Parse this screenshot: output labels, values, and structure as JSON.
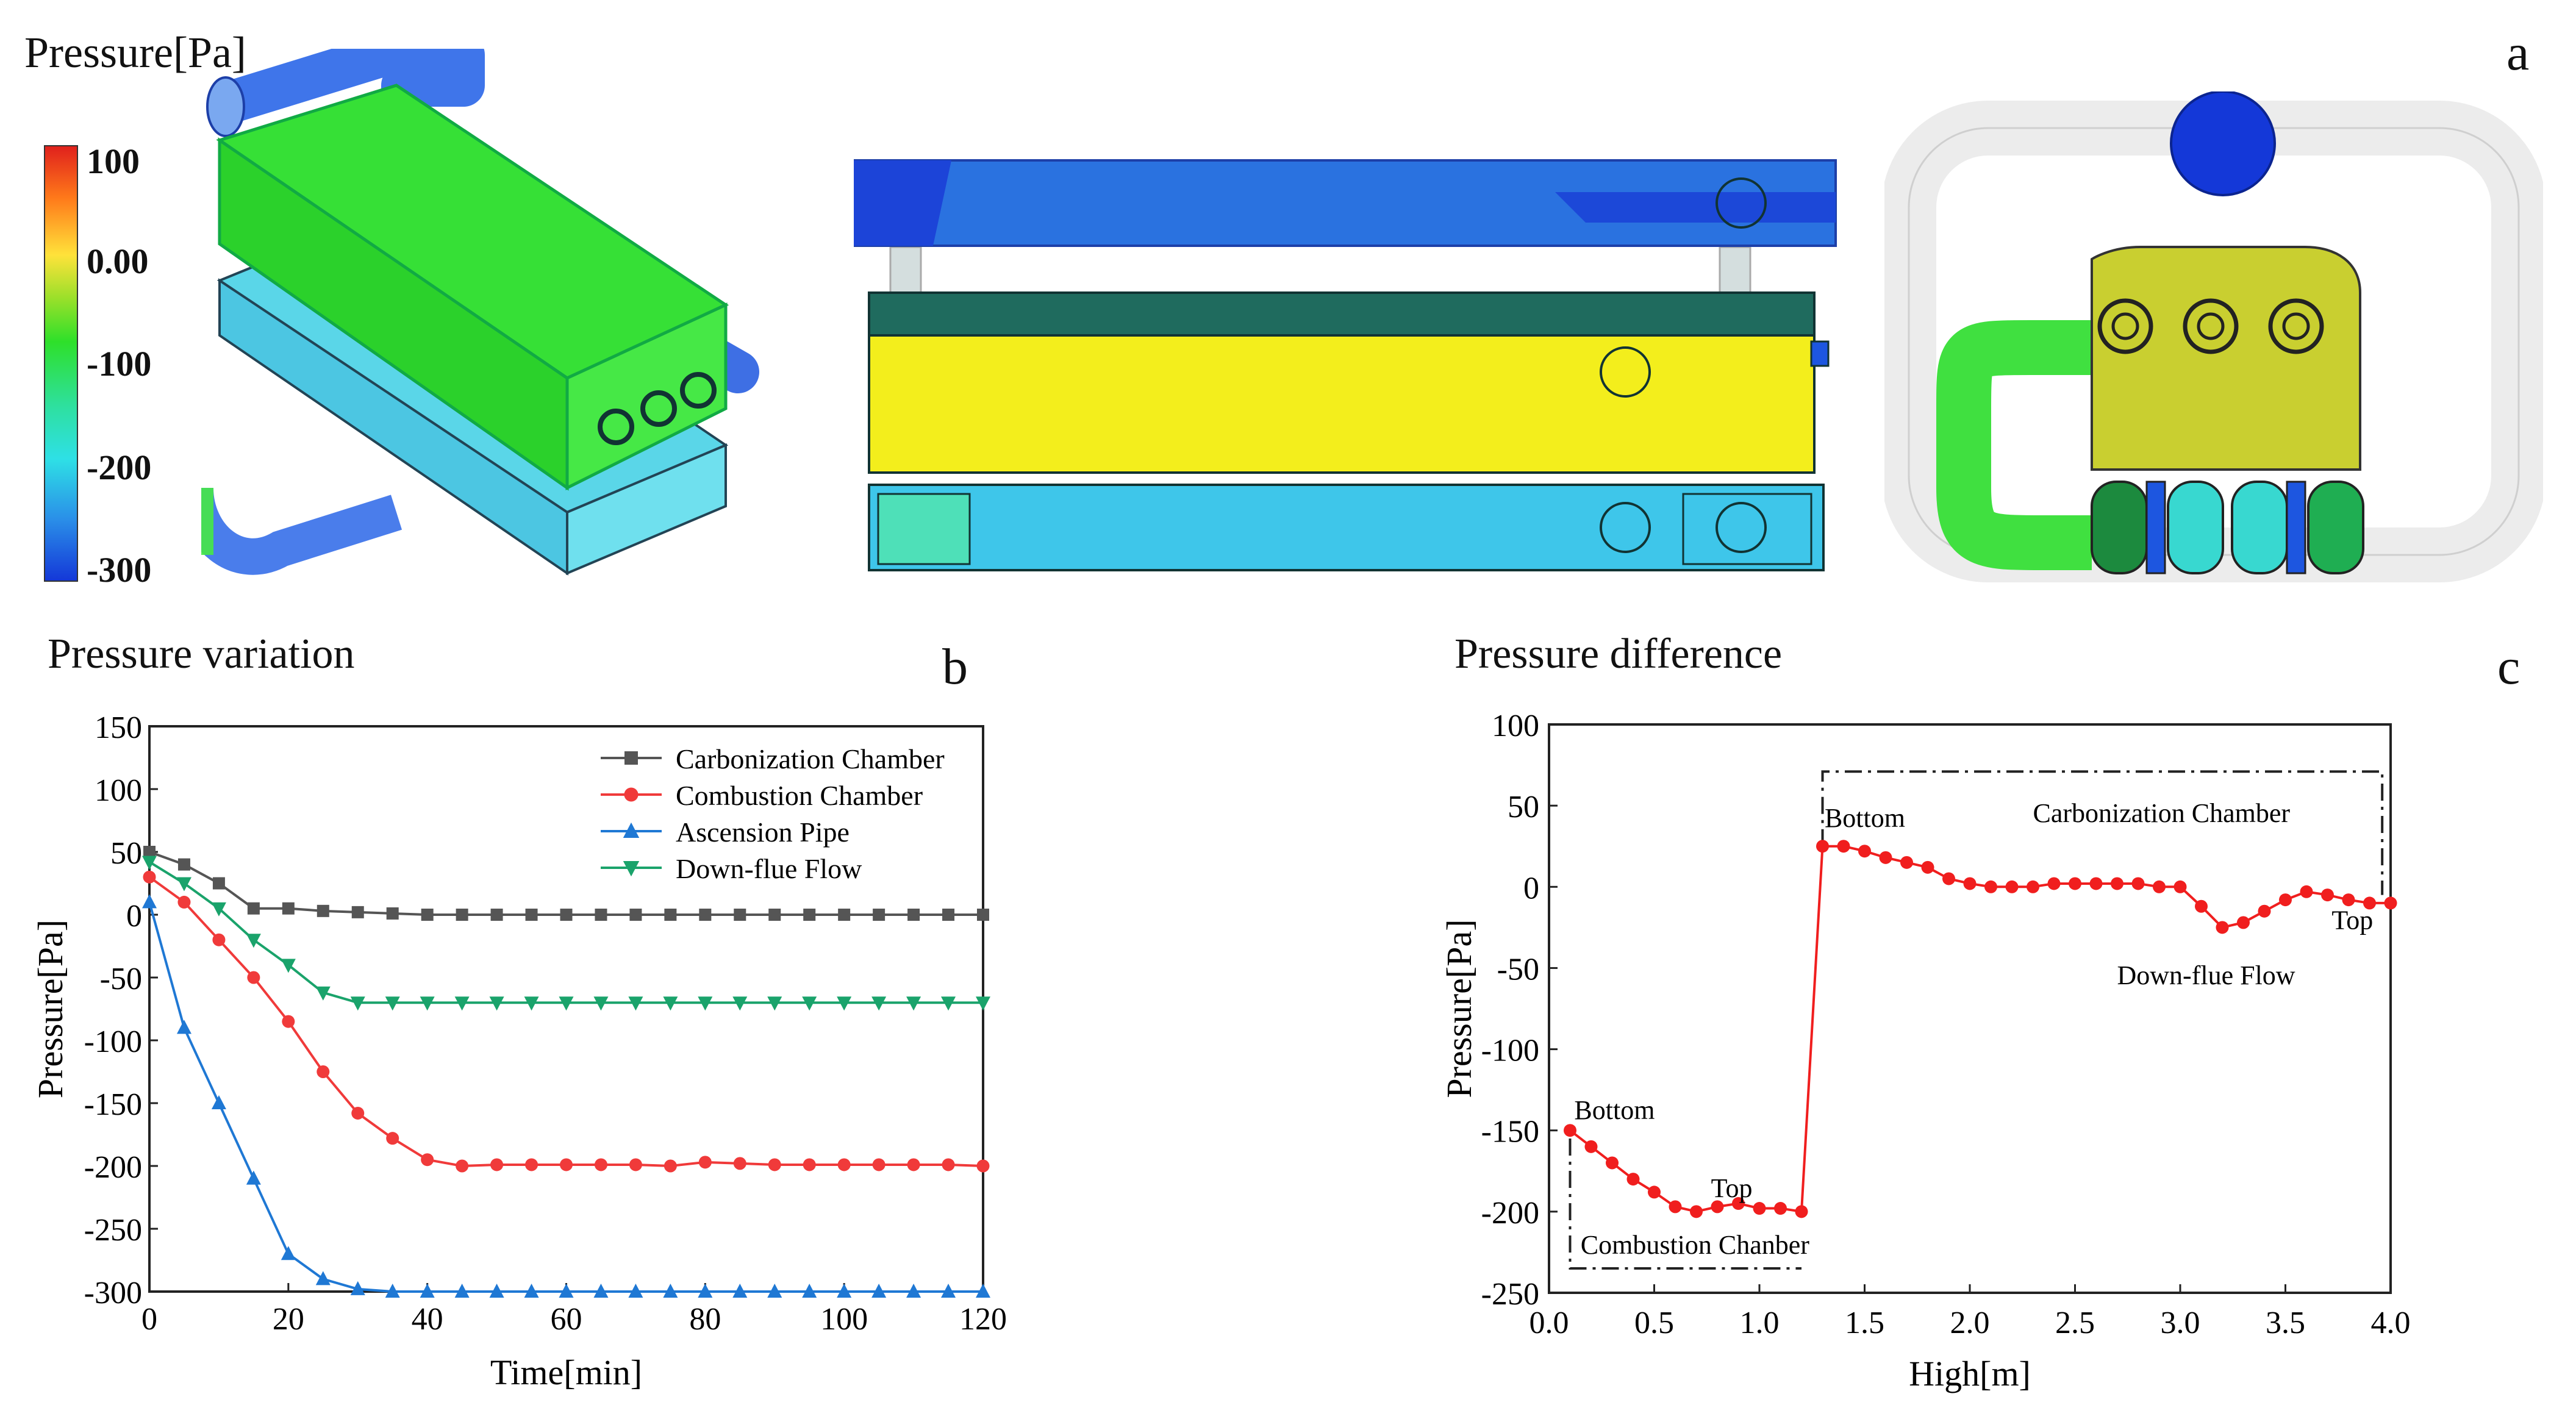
{
  "panel_a": {
    "letter": "a",
    "title": "Pressure[Pa]",
    "colorbar_ticks": [
      "100",
      "0.00",
      "-100",
      "-200",
      "-300"
    ],
    "colors": {
      "high": "#e0211c",
      "mid": "#ffe23a",
      "zero": "#2ee02a",
      "low2": "#2ee0e6",
      "low": "#1438d8"
    }
  },
  "panel_b": {
    "letter": "b",
    "title": "Pressure variation"
  },
  "panel_c": {
    "letter": "c",
    "title": "Pressure difference"
  },
  "chart_data": [
    {
      "type": "line",
      "id": "pressure-variation",
      "title": "Pressure variation",
      "xlabel": "Time[min]",
      "ylabel": "Pressure[Pa]",
      "xlim": [
        0,
        120
      ],
      "ylim": [
        -300,
        150
      ],
      "xticks": [
        "0",
        "20",
        "40",
        "60",
        "80",
        "100",
        "120"
      ],
      "yticks": [
        "150",
        "100",
        "50",
        "0",
        "-50",
        "-100",
        "-150",
        "-200",
        "-250",
        "-300"
      ],
      "x": [
        0,
        5,
        10,
        15,
        20,
        25,
        30,
        35,
        40,
        45,
        50,
        55,
        60,
        65,
        70,
        75,
        80,
        85,
        90,
        95,
        100,
        105,
        110,
        115,
        120
      ],
      "series": [
        {
          "name": "Carbonization Chamber",
          "color": "#555555",
          "marker": "square",
          "values": [
            50,
            40,
            25,
            5,
            5,
            3,
            2,
            1,
            0,
            0,
            0,
            0,
            0,
            0,
            0,
            0,
            0,
            0,
            0,
            0,
            0,
            0,
            0,
            0,
            0
          ]
        },
        {
          "name": "Combustion Chamber",
          "color": "#f03a3a",
          "marker": "circle",
          "values": [
            30,
            10,
            -20,
            -50,
            -85,
            -125,
            -158,
            -178,
            -195,
            -200,
            -199,
            -199,
            -199,
            -199,
            -199,
            -200,
            -197,
            -198,
            -199,
            -199,
            -199,
            -199,
            -199,
            -199,
            -200
          ]
        },
        {
          "name": "Ascension Pipe",
          "color": "#1f78d4",
          "marker": "triangle-up",
          "values": [
            10,
            -90,
            -150,
            -210,
            -270,
            -290,
            -298,
            -300,
            -300,
            -300,
            -300,
            -300,
            -300,
            -300,
            -300,
            -300,
            -300,
            -300,
            -300,
            -300,
            -300,
            -300,
            -300,
            -300,
            -300
          ]
        },
        {
          "name": "Down-flue Flow",
          "color": "#1aa36b",
          "marker": "triangle-down",
          "values": [
            42,
            25,
            5,
            -20,
            -40,
            -62,
            -70,
            -70,
            -70,
            -70,
            -70,
            -70,
            -70,
            -70,
            -70,
            -70,
            -70,
            -70,
            -70,
            -70,
            -70,
            -70,
            -70,
            -70,
            -70
          ]
        }
      ],
      "legend": "top-right"
    },
    {
      "type": "line",
      "id": "pressure-difference",
      "title": "Pressure difference",
      "xlabel": "High[m]",
      "ylabel": "Pressure[Pa]",
      "xlim": [
        0.0,
        4.0
      ],
      "ylim": [
        -250,
        100
      ],
      "xticks": [
        "0.0",
        "0.5",
        "1.0",
        "1.5",
        "2.0",
        "2.5",
        "3.0",
        "3.5",
        "4.0"
      ],
      "yticks": [
        "100",
        "50",
        "0",
        "-50",
        "-100",
        "-150",
        "-200",
        "-250"
      ],
      "series": [
        {
          "name": "Pressure",
          "color": "#f01e1e",
          "marker": "circle",
          "x": [
            0.1,
            0.2,
            0.3,
            0.4,
            0.5,
            0.6,
            0.7,
            0.8,
            0.9,
            1.0,
            1.1,
            1.2,
            1.3,
            1.4,
            1.5,
            1.6,
            1.7,
            1.8,
            1.9,
            2.0,
            2.1,
            2.2,
            2.3,
            2.4,
            2.5,
            2.6,
            2.7,
            2.8,
            2.9,
            3.0,
            3.1,
            3.2,
            3.3,
            3.4,
            3.5,
            3.6,
            3.7,
            3.8,
            3.9,
            4.0
          ],
          "values": [
            -150,
            -160,
            -170,
            -180,
            -188,
            -197,
            -200,
            -197,
            -195,
            -198,
            -198,
            -200,
            25,
            25,
            22,
            18,
            15,
            12,
            5,
            2,
            0,
            0,
            0,
            2,
            2,
            2,
            2,
            2,
            0,
            0,
            -12,
            -25,
            -22,
            -15,
            -8,
            -3,
            -5,
            -8,
            -10,
            -10
          ]
        }
      ],
      "annotations": {
        "bottom_low": "Bottom",
        "top_low": "Top",
        "combustion": "Combustion Chanber",
        "bottom_high": "Bottom",
        "carbonization": "Carbonization Chamber",
        "downflue": "Down-flue Flow",
        "top_high": "Top"
      }
    }
  ]
}
